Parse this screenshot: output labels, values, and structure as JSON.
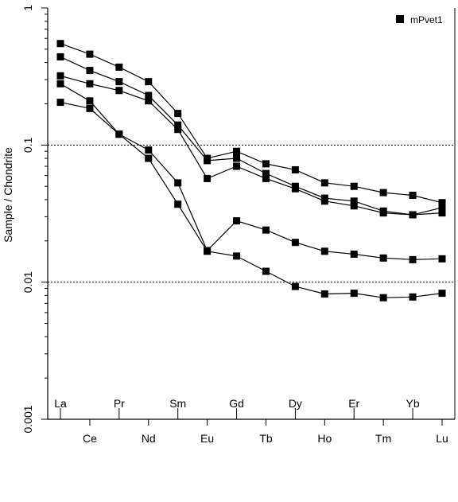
{
  "chart_data": {
    "type": "line",
    "title": "",
    "xlabel": "",
    "ylabel": "Sample / Chondrite",
    "yscale": "log",
    "ylim": [
      0.001,
      1
    ],
    "yticks": [
      "0.001",
      "0.01",
      "0.1",
      "1"
    ],
    "reference_lines": [
      0.1,
      0.01
    ],
    "grid": false,
    "legend_position": "top-right",
    "legend": [
      "mPvet1"
    ],
    "categories": [
      "La",
      "Ce",
      "Pr",
      "Nd",
      "Sm",
      "Eu",
      "Gd",
      "Tb",
      "Dy",
      "Ho",
      "Er",
      "Tm",
      "Yb",
      "Lu"
    ],
    "series": [
      {
        "values": [
          0.55,
          0.46,
          0.37,
          0.29,
          0.17,
          0.08,
          0.09,
          0.073,
          0.066,
          0.053,
          0.05,
          0.045,
          0.043,
          0.038
        ]
      },
      {
        "values": [
          0.44,
          0.35,
          0.29,
          0.23,
          0.14,
          0.077,
          0.08,
          0.062,
          0.05,
          0.041,
          0.039,
          0.033,
          0.031,
          0.035
        ]
      },
      {
        "values": [
          0.32,
          0.28,
          0.25,
          0.21,
          0.13,
          0.057,
          0.07,
          0.057,
          0.048,
          0.039,
          0.036,
          0.032,
          0.031,
          0.032
        ]
      },
      {
        "values": [
          0.28,
          0.21,
          0.12,
          0.092,
          0.053,
          0.017,
          0.028,
          0.024,
          0.0195,
          0.0168,
          0.016,
          0.015,
          0.0146,
          0.0148
        ]
      },
      {
        "values": [
          0.205,
          0.185,
          0.12,
          0.08,
          0.037,
          0.0168,
          0.0155,
          0.012,
          0.0093,
          0.0082,
          0.0083,
          0.0077,
          0.0078,
          0.0083
        ]
      }
    ],
    "colors": {
      "line": "#000000",
      "marker": "#000000",
      "refline": "#000000"
    }
  }
}
